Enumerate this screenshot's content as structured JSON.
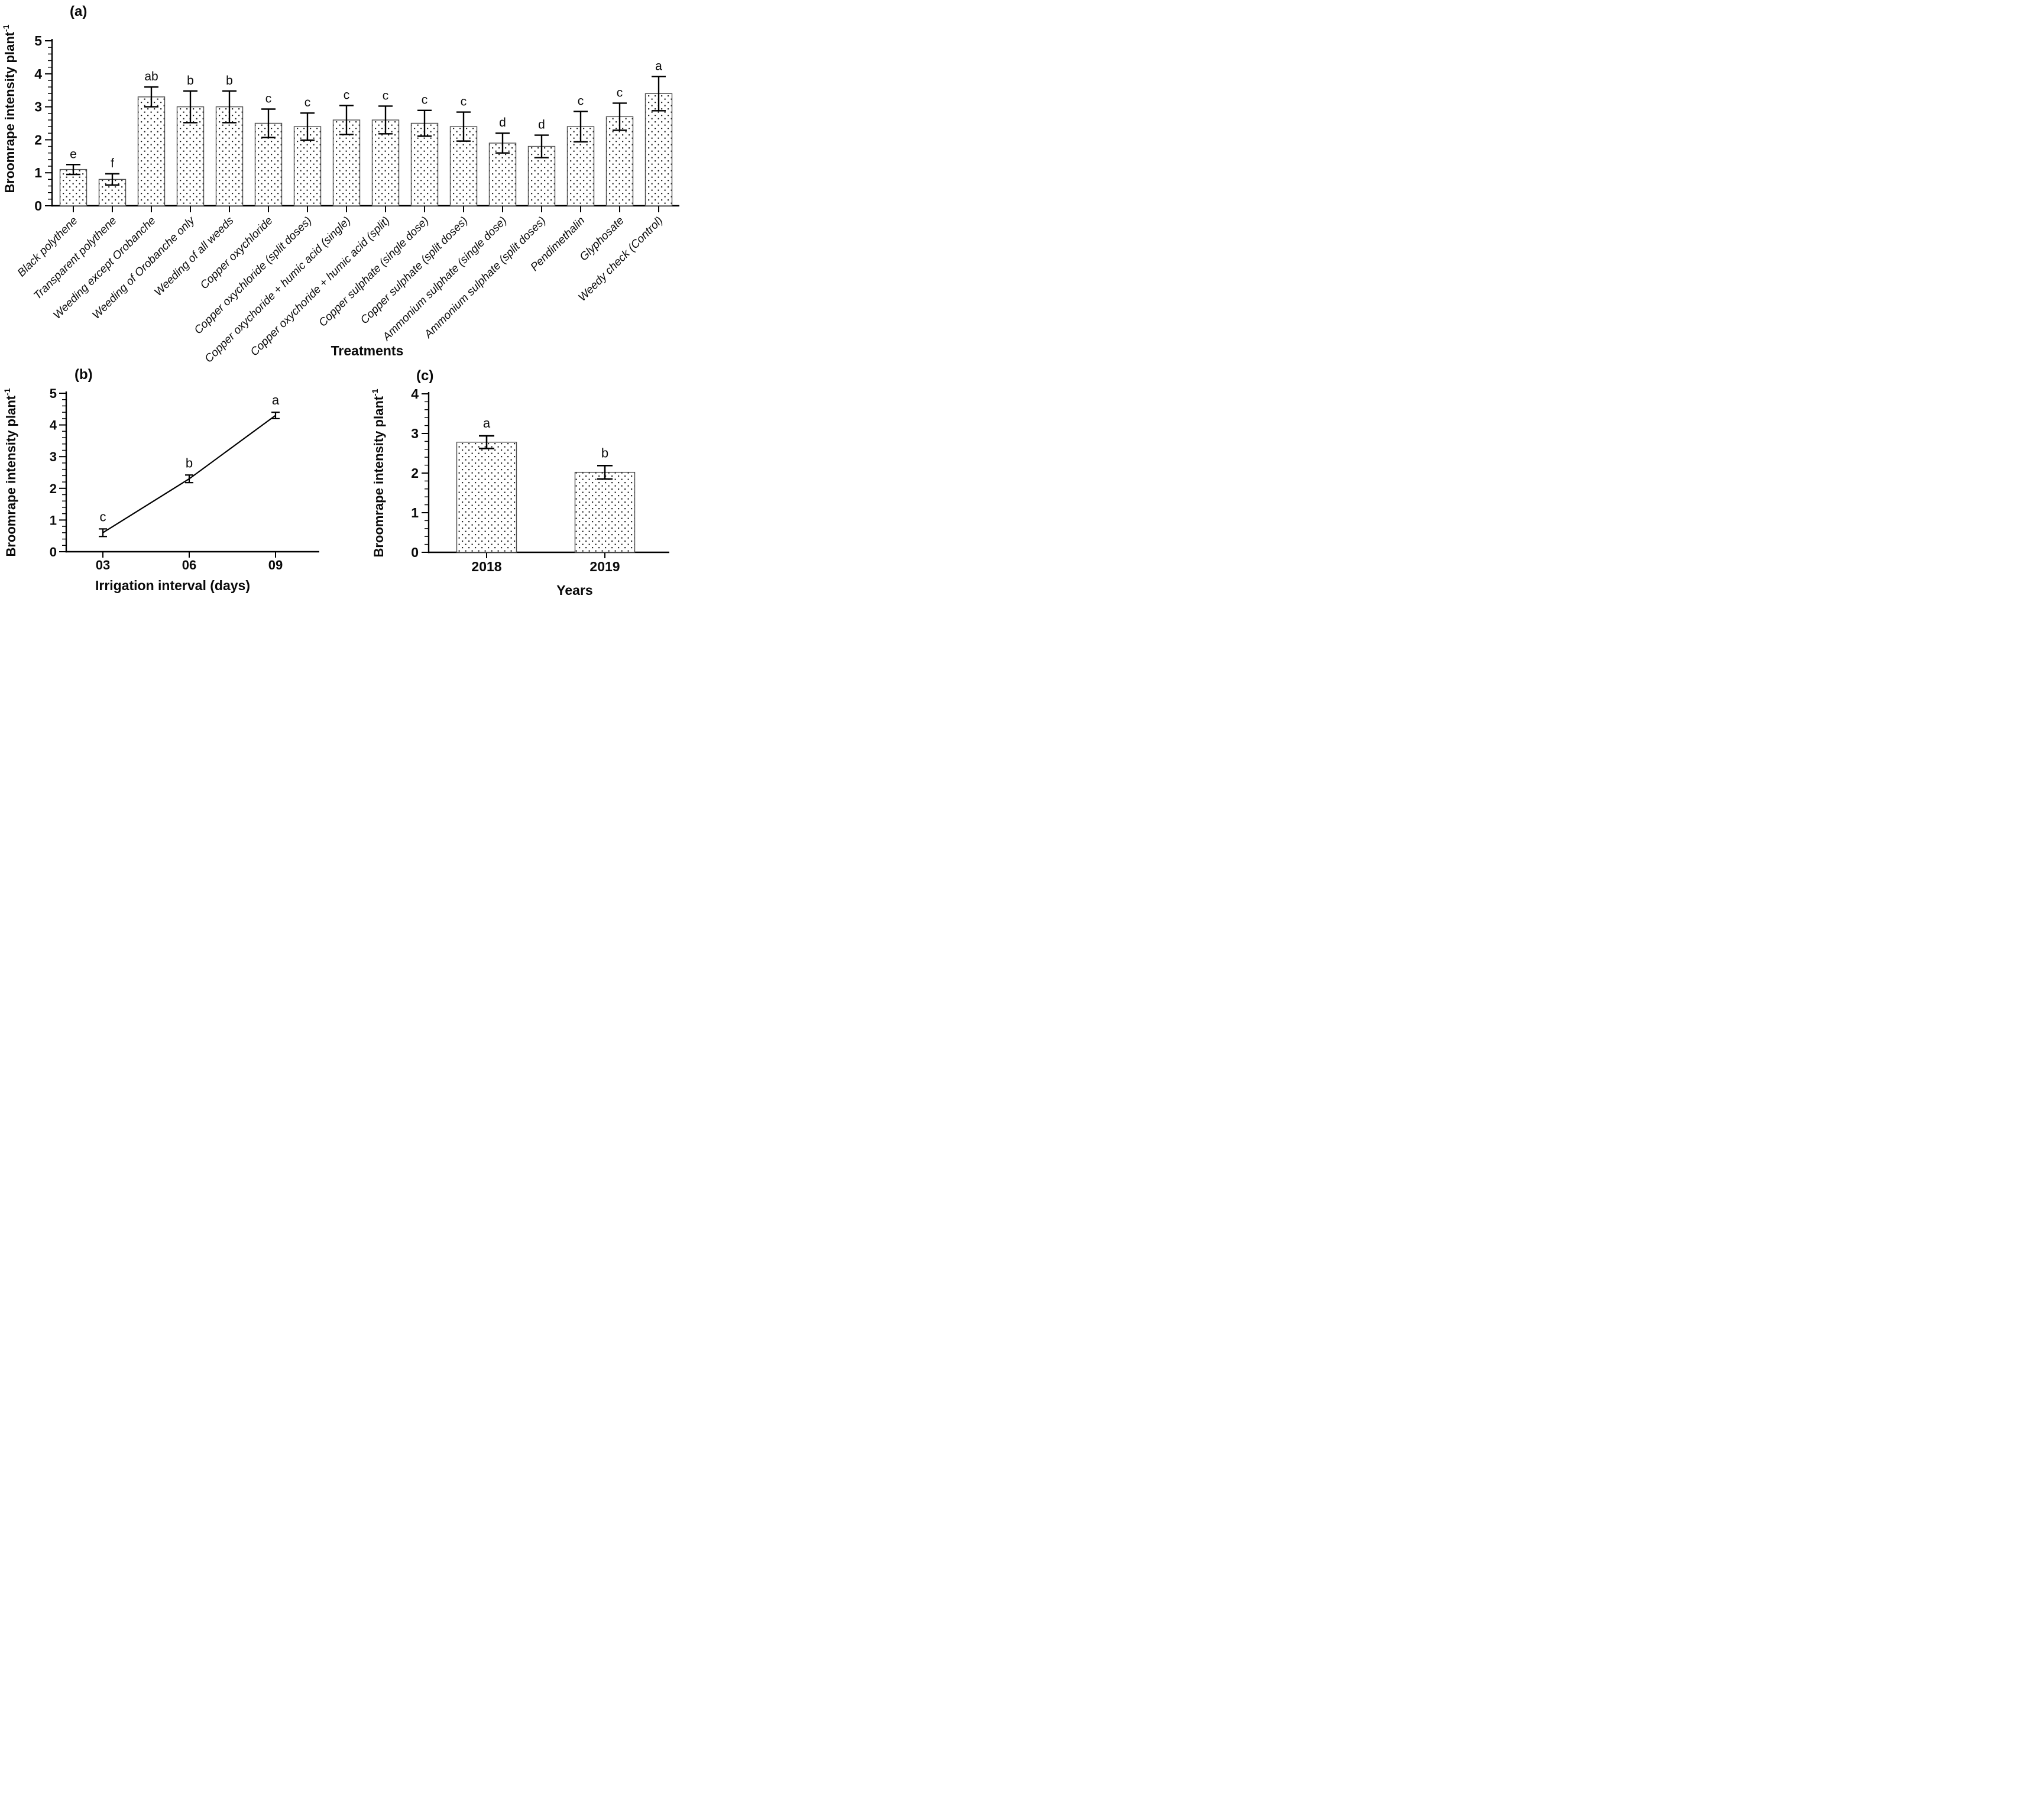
{
  "figure": {
    "background": "#ffffff",
    "colors": {
      "axis": "#000000",
      "bar_stroke": "#4d4d4d",
      "dot": "#141414",
      "error_bar": "#000000",
      "text": "#0a0a0a"
    }
  },
  "chart_data": [
    {
      "id": "a",
      "type": "bar",
      "panel_label": "(a)",
      "ylabel": "Broomrape intensity plant",
      "ylabel_sup": "-1",
      "xlabel": "Treatments",
      "ylim": [
        0,
        5
      ],
      "ytick_step": 1,
      "yminor_step": 0.2,
      "grid": "off",
      "categories": [
        "Black polythene",
        "Transparent polythene",
        "Weeding except Orobanche",
        "Weeding of Orobanche only",
        "Weeding of all weeds",
        "Copper oxychloride",
        "Copper oxychloride (split doses)",
        "Copper oxychoride + humic acid (single)",
        "Copper oxychoride + humic acid (split)",
        "Copper sulphate (single dose)",
        "Copper sulphate (split doses)",
        "Ammonium sulphate (single dose)",
        "Ammonium sulphate (split doses)",
        "Pendimethalin",
        "Glyphosate",
        "Weedy check (Control)"
      ],
      "values": [
        1.1,
        0.8,
        3.3,
        3.0,
        3.0,
        2.5,
        2.4,
        2.6,
        2.6,
        2.5,
        2.4,
        1.9,
        1.8,
        2.4,
        2.7,
        3.4
      ],
      "errors": [
        0.15,
        0.17,
        0.3,
        0.48,
        0.48,
        0.43,
        0.41,
        0.44,
        0.42,
        0.39,
        0.44,
        0.3,
        0.34,
        0.46,
        0.41,
        0.52
      ],
      "letters": [
        "e",
        "f",
        "ab",
        "b",
        "b",
        "c",
        "c",
        "c",
        "c",
        "c",
        "c",
        "d",
        "d",
        "c",
        "c",
        "a"
      ]
    },
    {
      "id": "b",
      "type": "line",
      "panel_label": "(b)",
      "ylabel": "Broomrape intensity plant",
      "ylabel_sup": "-1",
      "xlabel": "Irrigation interval (days)",
      "ylim": [
        0,
        5
      ],
      "ytick_step": 1,
      "yminor_step": 0.2,
      "grid": "off",
      "categories": [
        "03",
        "06",
        "09"
      ],
      "values": [
        0.6,
        2.3,
        4.3
      ],
      "errors": [
        0.12,
        0.12,
        0.1
      ],
      "letters": [
        "c",
        "b",
        "a"
      ]
    },
    {
      "id": "c",
      "type": "bar",
      "panel_label": "(c)",
      "ylabel": "Broomrape intensity plant",
      "ylabel_sup": "-1",
      "xlabel": "Years",
      "ylim": [
        0,
        4
      ],
      "ytick_step": 1,
      "yminor_step": 0.2,
      "grid": "off",
      "categories": [
        "2018",
        "2019"
      ],
      "values": [
        2.78,
        2.02
      ],
      "errors": [
        0.16,
        0.17
      ],
      "letters": [
        "a",
        "b"
      ]
    }
  ]
}
